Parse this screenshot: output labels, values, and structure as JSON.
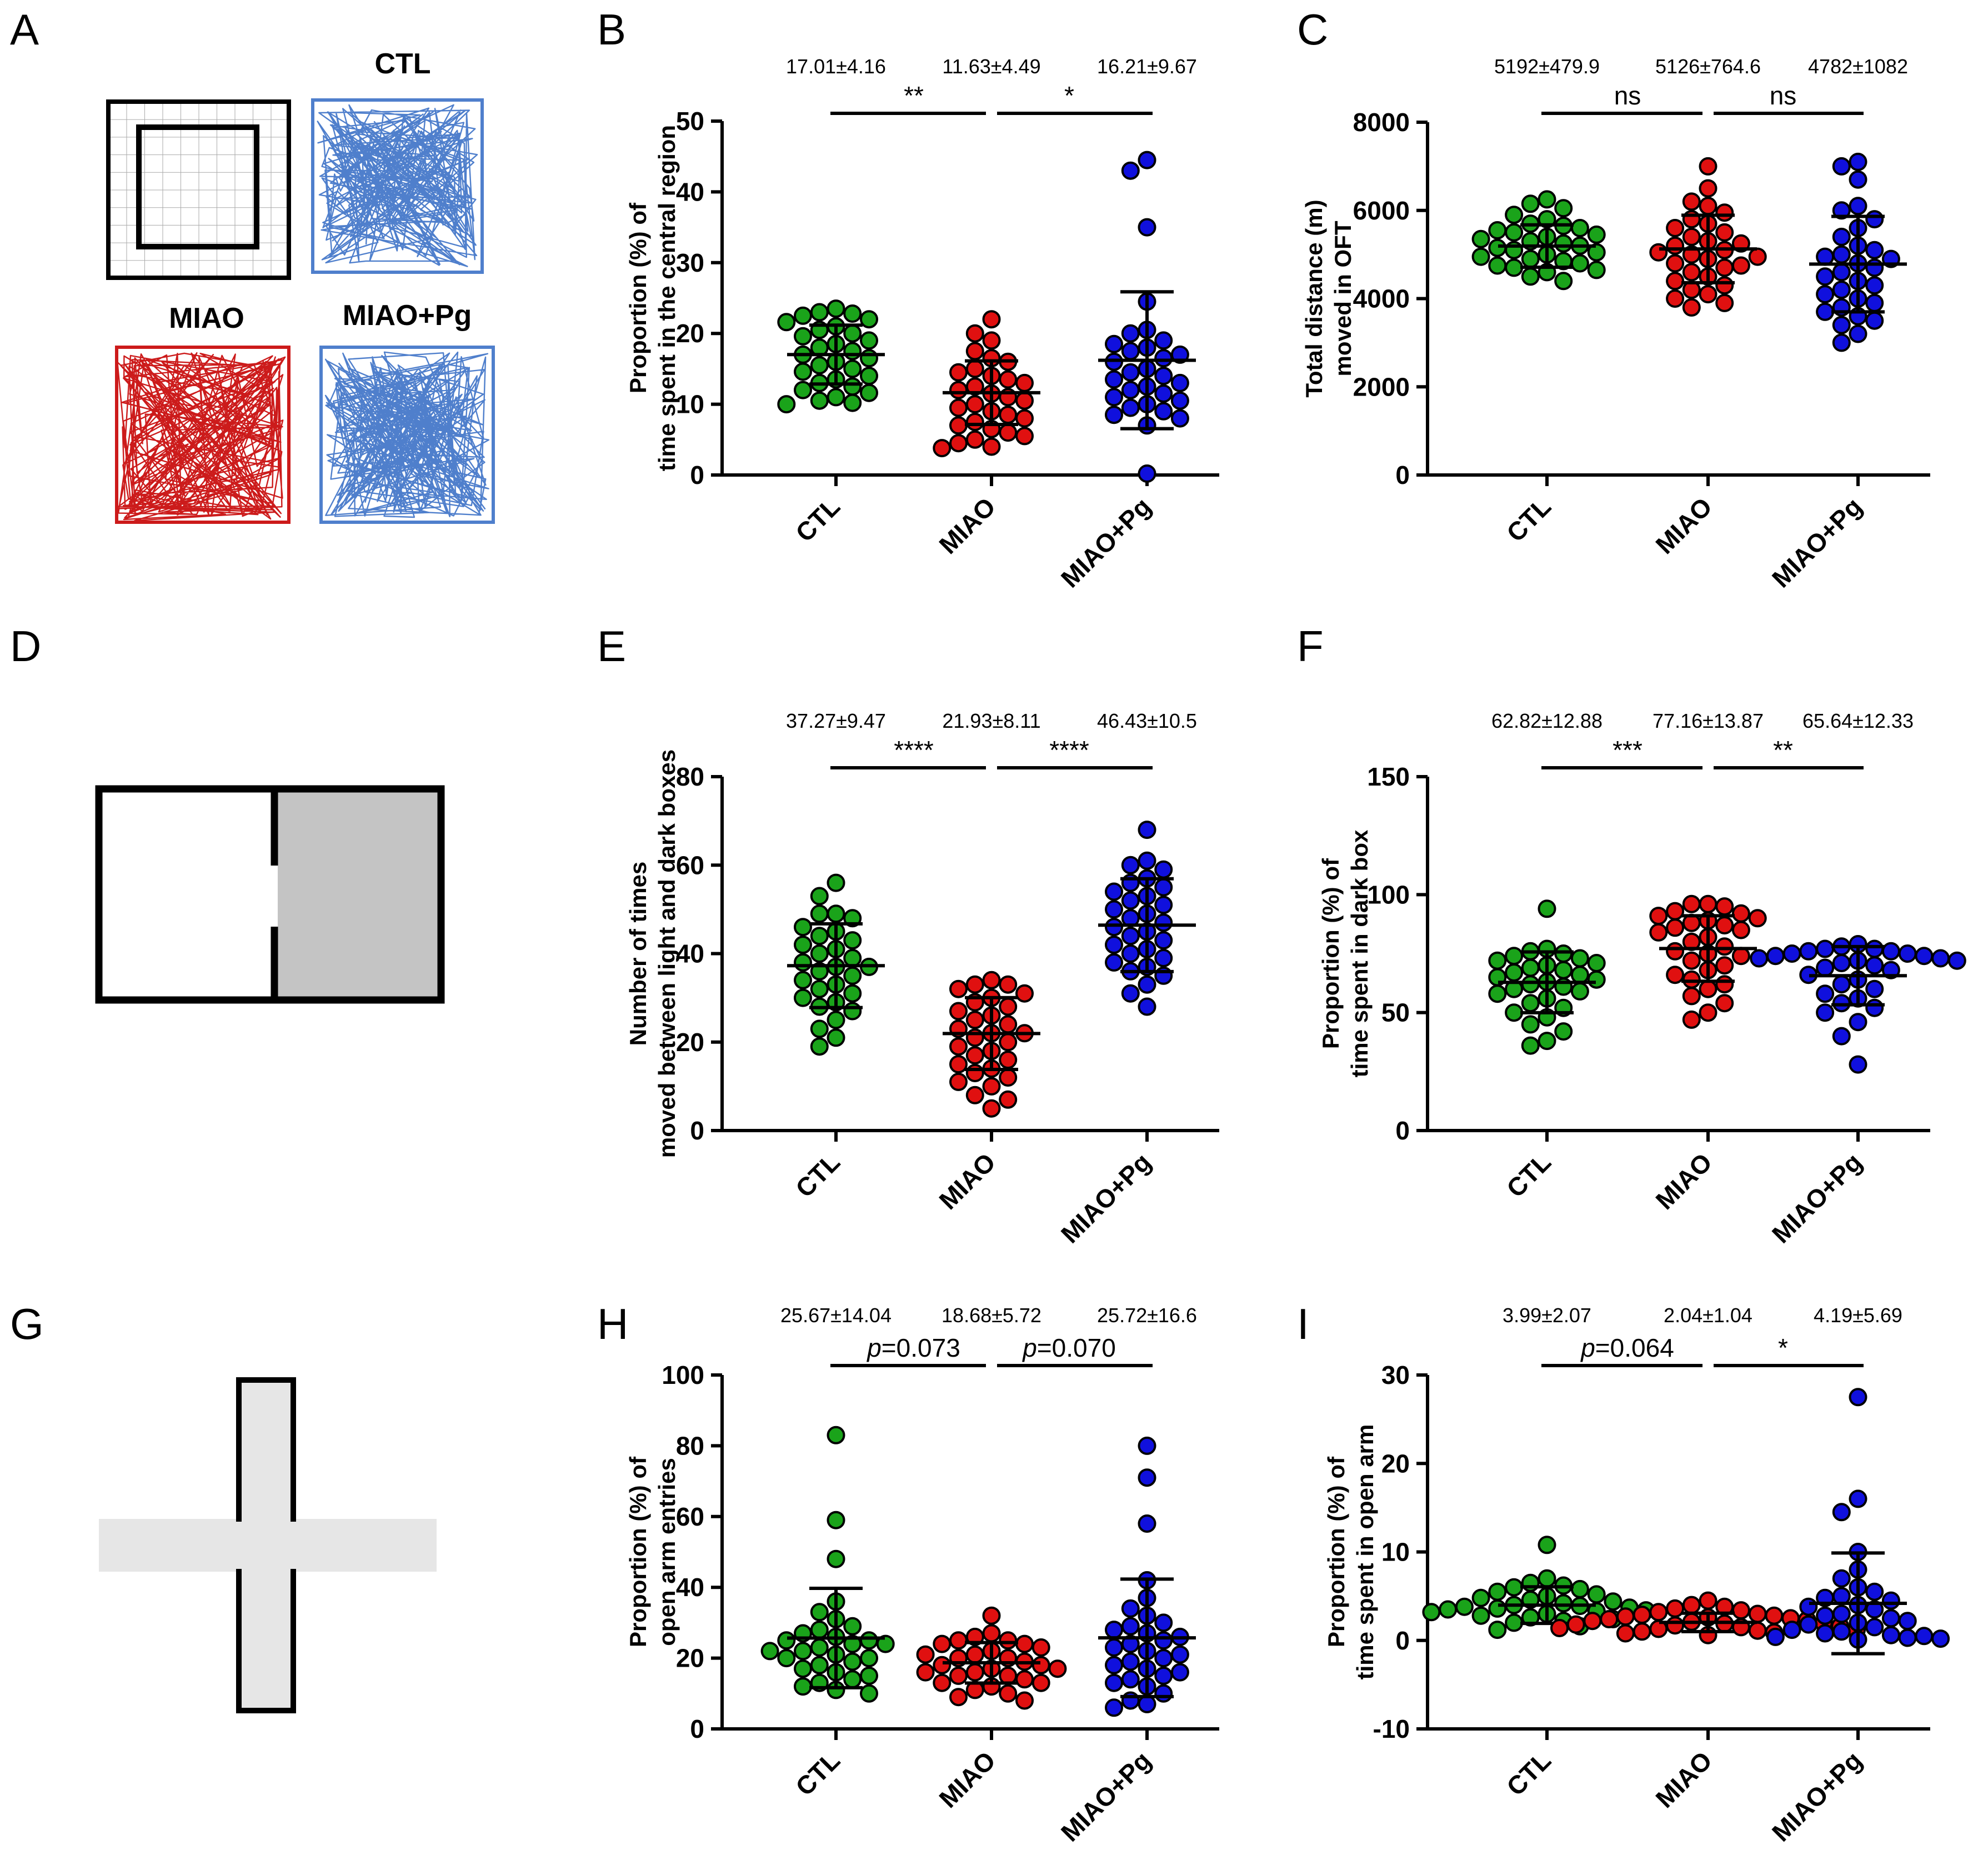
{
  "colors": {
    "CTL": "#1aa31a",
    "MIAO": "#e01010",
    "MIAO+Pg": "#1010dd",
    "track_blue": "#4f7fcc",
    "track_red": "#cc1b1b",
    "dark_box": "#c4c4c4",
    "maze_arm": "#e6e6e6"
  },
  "panels": {
    "A": {
      "letter": "A",
      "labels": [
        "CTL",
        "MIAO",
        "MIAO+Pg"
      ]
    },
    "D": {
      "letter": "D"
    },
    "G": {
      "letter": "G"
    }
  },
  "chart_data": [
    {
      "panel": "B",
      "type": "scatter",
      "ylabel": [
        "Proportion (%) of",
        "time spent in the central region"
      ],
      "ylim": [
        0,
        50
      ],
      "ticks": [
        0,
        10,
        20,
        30,
        40,
        50
      ],
      "categories": [
        "CTL",
        "MIAO",
        "MIAO+Pg"
      ],
      "stats": [
        "17.01±4.16",
        "11.63±4.49",
        "16.21±9.67"
      ],
      "means": [
        17.01,
        11.63,
        16.21
      ],
      "sds": [
        4.16,
        4.49,
        9.67
      ],
      "sig": [
        {
          "label": "**"
        },
        {
          "label": "*"
        }
      ],
      "series": [
        {
          "name": "CTL",
          "values": [
            23.5,
            23.0,
            22.8,
            22.5,
            22.0,
            21.6,
            21.0,
            20.5,
            20.0,
            19.6,
            19.0,
            18.5,
            18.0,
            17.5,
            17.0,
            16.5,
            16.0,
            15.5,
            15.0,
            14.6,
            14.0,
            13.5,
            13.0,
            12.5,
            12.0,
            11.6,
            11.0,
            10.5,
            10.2,
            10.0
          ]
        },
        {
          "name": "MIAO",
          "values": [
            22.0,
            20.0,
            19.0,
            17.5,
            16.5,
            16.0,
            15.0,
            14.5,
            14.0,
            13.5,
            13.0,
            12.5,
            12.0,
            11.5,
            11.0,
            10.5,
            10.0,
            9.5,
            9.0,
            8.5,
            8.0,
            7.5,
            7.0,
            6.5,
            6.0,
            5.5,
            5.0,
            4.5,
            4.0,
            3.8
          ]
        },
        {
          "name": "MIAO+Pg",
          "values": [
            44.5,
            43.0,
            35.0,
            24.5,
            20.5,
            20.0,
            19.0,
            18.5,
            18.0,
            17.5,
            17.0,
            16.5,
            16.0,
            15.0,
            14.5,
            14.0,
            13.5,
            13.0,
            12.5,
            12.0,
            11.5,
            11.0,
            10.5,
            10.0,
            9.5,
            9.0,
            8.5,
            8.0,
            7.0,
            0.2
          ]
        }
      ]
    },
    {
      "panel": "C",
      "type": "scatter",
      "ylabel": [
        "Total distance (m)",
        "moved in OFT"
      ],
      "ylim": [
        0,
        8000
      ],
      "ticks": [
        0,
        2000,
        4000,
        6000,
        8000
      ],
      "categories": [
        "CTL",
        "MIAO",
        "MIAO+Pg"
      ],
      "stats": [
        "5192±479.9",
        "5126±764.6",
        "4782±1082"
      ],
      "means": [
        5192,
        5126,
        4782
      ],
      "sds": [
        479.9,
        764.6,
        1082
      ],
      "sig": [
        {
          "label": "ns"
        },
        {
          "label": "ns"
        }
      ],
      "series": [
        {
          "name": "CTL",
          "values": [
            6250,
            6150,
            6050,
            5900,
            5800,
            5700,
            5650,
            5600,
            5550,
            5500,
            5450,
            5400,
            5350,
            5300,
            5250,
            5200,
            5150,
            5100,
            5050,
            5000,
            4950,
            4900,
            4850,
            4800,
            4750,
            4700,
            4650,
            4600,
            4500,
            4400
          ]
        },
        {
          "name": "MIAO",
          "values": [
            7000,
            6500,
            6200,
            6100,
            5950,
            5800,
            5700,
            5600,
            5500,
            5400,
            5300,
            5250,
            5200,
            5100,
            5050,
            5000,
            4950,
            4900,
            4800,
            4750,
            4700,
            4600,
            4500,
            4400,
            4300,
            4200,
            4100,
            4000,
            3900,
            3800
          ]
        },
        {
          "name": "MIAO+Pg",
          "values": [
            7100,
            7000,
            6700,
            6100,
            6000,
            5800,
            5600,
            5400,
            5200,
            5100,
            5000,
            4950,
            4900,
            4800,
            4700,
            4600,
            4500,
            4400,
            4300,
            4200,
            4100,
            4000,
            3900,
            3800,
            3700,
            3600,
            3500,
            3400,
            3200,
            3000
          ]
        }
      ]
    },
    {
      "panel": "E",
      "type": "scatter",
      "ylabel": [
        "Number of times",
        "moved between light and dark boxes"
      ],
      "ylim": [
        0,
        80
      ],
      "ticks": [
        0,
        20,
        40,
        60,
        80
      ],
      "categories": [
        "CTL",
        "MIAO",
        "MIAO+Pg"
      ],
      "stats": [
        "37.27±9.47",
        "21.93±8.11",
        "46.43±10.5"
      ],
      "means": [
        37.27,
        21.93,
        46.43
      ],
      "sds": [
        9.47,
        8.11,
        10.5
      ],
      "sig": [
        {
          "label": "****"
        },
        {
          "label": "****"
        }
      ],
      "series": [
        {
          "name": "CTL",
          "values": [
            56,
            53,
            49,
            49,
            48,
            46,
            45,
            44,
            43,
            42,
            41,
            40,
            39,
            38,
            37,
            37,
            36,
            35,
            34,
            33,
            32,
            31,
            30,
            29,
            28,
            27,
            25,
            23,
            21,
            19
          ]
        },
        {
          "name": "MIAO",
          "values": [
            34,
            33,
            33,
            32,
            31,
            30,
            29,
            28,
            27,
            26,
            25,
            24,
            23,
            22,
            22,
            21,
            20,
            19,
            18,
            17,
            16,
            15,
            14,
            13,
            12,
            11,
            10,
            8,
            7,
            5
          ]
        },
        {
          "name": "MIAO+Pg",
          "values": [
            68,
            61,
            60,
            59,
            57,
            56,
            55,
            54,
            53,
            52,
            51,
            50,
            49,
            48,
            47,
            46,
            45,
            44,
            43,
            42,
            41,
            40,
            39,
            38,
            37,
            36,
            35,
            33,
            31,
            28
          ]
        }
      ]
    },
    {
      "panel": "F",
      "type": "scatter",
      "ylabel": [
        "Proportion (%) of",
        "time spent in dark box"
      ],
      "ylim": [
        0,
        150
      ],
      "ticks": [
        0,
        50,
        100,
        150
      ],
      "categories": [
        "CTL",
        "MIAO",
        "MIAO+Pg"
      ],
      "stats": [
        "62.82±12.88",
        "77.16±13.87",
        "65.64±12.33"
      ],
      "means": [
        62.82,
        77.16,
        65.64
      ],
      "sds": [
        12.88,
        13.87,
        12.33
      ],
      "sig": [
        {
          "label": "***"
        },
        {
          "label": "**"
        }
      ],
      "series": [
        {
          "name": "CTL",
          "values": [
            94,
            77,
            76,
            75,
            74,
            73,
            72,
            71,
            70,
            69,
            68,
            67,
            66,
            65,
            64,
            63,
            62,
            61,
            60,
            59,
            58,
            56,
            54,
            52,
            50,
            48,
            45,
            42,
            38,
            36
          ]
        },
        {
          "name": "MIAO",
          "values": [
            96,
            96,
            95,
            93,
            92,
            91,
            90,
            89,
            88,
            87,
            86,
            85,
            84,
            82,
            80,
            78,
            76,
            75,
            74,
            72,
            70,
            68,
            66,
            64,
            62,
            60,
            57,
            54,
            50,
            47
          ]
        },
        {
          "name": "MIAO+Pg",
          "values": [
            79,
            78,
            77,
            77,
            76,
            76,
            75,
            75,
            74,
            74,
            73,
            73,
            72,
            72,
            71,
            70,
            69,
            68,
            66,
            64,
            62,
            60,
            58,
            56,
            54,
            52,
            50,
            46,
            40,
            28
          ]
        }
      ]
    },
    {
      "panel": "H",
      "type": "scatter",
      "ylabel": [
        "Proportion (%) of",
        "open arm entries"
      ],
      "ylim": [
        0,
        100
      ],
      "ticks": [
        0,
        20,
        40,
        60,
        80,
        100
      ],
      "categories": [
        "CTL",
        "MIAO",
        "MIAO+Pg"
      ],
      "stats": [
        "25.67±14.04",
        "18.68±5.72",
        "25.72±16.6"
      ],
      "means": [
        25.67,
        18.68,
        25.72
      ],
      "sds": [
        14.04,
        5.72,
        16.6
      ],
      "sig": [
        {
          "p": "p",
          "label": "=0.073"
        },
        {
          "p": "p",
          "label": "=0.070"
        }
      ],
      "series": [
        {
          "name": "CTL",
          "values": [
            83,
            59,
            48,
            36,
            33,
            31,
            29,
            28,
            27,
            26,
            25,
            25,
            24,
            23,
            22,
            21,
            20,
            19,
            18,
            17,
            16,
            15,
            14,
            13,
            12,
            11,
            10,
            20,
            22,
            24
          ]
        },
        {
          "name": "MIAO",
          "values": [
            32,
            27,
            26,
            25,
            25,
            24,
            24,
            23,
            22,
            21,
            21,
            20,
            20,
            19,
            18,
            18,
            17,
            17,
            16,
            16,
            15,
            15,
            14,
            13,
            13,
            12,
            11,
            10,
            9,
            8
          ]
        },
        {
          "name": "MIAO+Pg",
          "values": [
            80,
            71,
            58,
            42,
            37,
            34,
            32,
            30,
            29,
            28,
            27,
            26,
            25,
            24,
            23,
            22,
            21,
            20,
            19,
            18,
            17,
            16,
            15,
            14,
            13,
            12,
            10,
            8,
            7,
            6
          ]
        }
      ]
    },
    {
      "panel": "I",
      "type": "scatter",
      "ylabel": [
        "Proportion (%) of",
        "time spent in open arm"
      ],
      "ylim": [
        -10,
        30
      ],
      "ticks": [
        -10,
        0,
        10,
        20,
        30
      ],
      "categories": [
        "CTL",
        "MIAO",
        "MIAO+Pg"
      ],
      "stats": [
        "3.99±2.07",
        "2.04±1.04",
        "4.19±5.69"
      ],
      "means": [
        3.99,
        2.04,
        4.19
      ],
      "sds": [
        2.07,
        1.04,
        5.69
      ],
      "sig": [
        {
          "p": "p",
          "label": "=0.064"
        },
        {
          "label": "*"
        }
      ],
      "series": [
        {
          "name": "CTL",
          "values": [
            10.8,
            7.0,
            6.5,
            6.2,
            6.0,
            5.8,
            5.5,
            5.2,
            5.0,
            4.8,
            4.6,
            4.4,
            4.2,
            4.0,
            3.9,
            3.8,
            3.7,
            3.6,
            3.5,
            3.4,
            3.3,
            3.2,
            3.0,
            2.8,
            2.6,
            2.4,
            2.2,
            2.0,
            1.6,
            1.2
          ]
        },
        {
          "name": "MIAO",
          "values": [
            4.5,
            4.0,
            3.8,
            3.6,
            3.4,
            3.2,
            3.0,
            2.9,
            2.8,
            2.7,
            2.6,
            2.5,
            2.4,
            2.3,
            2.2,
            2.1,
            2.0,
            1.9,
            1.8,
            1.7,
            1.6,
            1.5,
            1.4,
            1.3,
            1.2,
            1.1,
            1.0,
            0.9,
            0.8,
            0.6
          ]
        },
        {
          "name": "MIAO+Pg",
          "values": [
            27.5,
            16.0,
            14.5,
            10.0,
            8.0,
            7.0,
            6.0,
            5.5,
            5.0,
            4.8,
            4.5,
            4.0,
            3.8,
            3.5,
            3.0,
            2.8,
            2.5,
            2.2,
            2.0,
            1.8,
            1.5,
            1.2,
            1.0,
            0.8,
            0.6,
            0.5,
            0.4,
            0.3,
            0.2,
            0.1
          ]
        }
      ]
    }
  ]
}
